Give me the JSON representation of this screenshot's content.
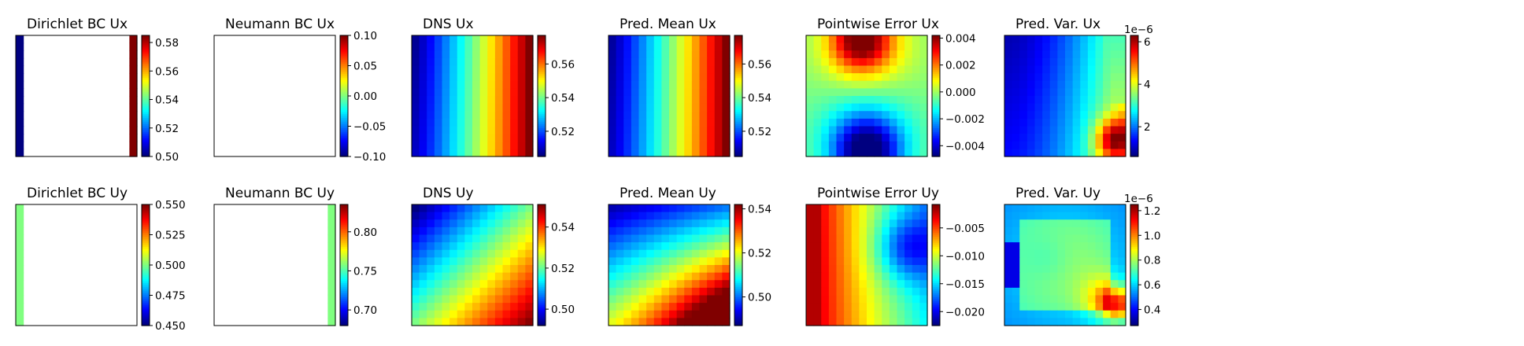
{
  "chart_data": [
    {
      "type": "heatmap",
      "title": "Dirichlet BC Ux",
      "field": "dirichlet_ux",
      "colorbar": {
        "min": 0.5,
        "max": 0.585,
        "ticks": [
          0.5,
          0.52,
          0.54,
          0.56,
          0.58
        ],
        "tick_labels": [
          "0.50",
          "0.52",
          "0.54",
          "0.56",
          "0.58"
        ],
        "offset_label": ""
      }
    },
    {
      "type": "heatmap",
      "title": "Neumann BC Ux",
      "field": "neumann_ux",
      "colorbar": {
        "min": -0.1,
        "max": 0.1,
        "ticks": [
          -0.1,
          -0.05,
          0,
          0.05,
          0.1
        ],
        "tick_labels": [
          "−0.10",
          "−0.05",
          "0.00",
          "0.05",
          "0.10"
        ],
        "offset_label": ""
      }
    },
    {
      "type": "heatmap",
      "title": "DNS Ux",
      "field": "dns_ux",
      "colorbar": {
        "min": 0.505,
        "max": 0.577,
        "ticks": [
          0.52,
          0.54,
          0.56
        ],
        "tick_labels": [
          "0.52",
          "0.54",
          "0.56"
        ],
        "offset_label": ""
      }
    },
    {
      "type": "heatmap",
      "title": "Pred. Mean Ux",
      "field": "pred_ux",
      "colorbar": {
        "min": 0.505,
        "max": 0.577,
        "ticks": [
          0.52,
          0.54,
          0.56
        ],
        "tick_labels": [
          "0.52",
          "0.54",
          "0.56"
        ],
        "offset_label": ""
      }
    },
    {
      "type": "heatmap",
      "title": "Pointwise Error Ux",
      "field": "err_ux",
      "colorbar": {
        "min": -0.0048,
        "max": 0.0042,
        "ticks": [
          -0.004,
          -0.002,
          0,
          0.002,
          0.004
        ],
        "tick_labels": [
          "−0.004",
          "−0.002",
          "0.000",
          "0.002",
          "0.004"
        ],
        "offset_label": ""
      }
    },
    {
      "type": "heatmap",
      "title": "Pred. Var. Ux",
      "field": "var_ux",
      "colorbar": {
        "min": 0.6,
        "max": 6.3,
        "ticks": [
          2,
          4,
          6
        ],
        "tick_labels": [
          "2",
          "4",
          "6"
        ],
        "offset_label": "1e−6"
      }
    },
    {
      "type": "heatmap",
      "title": "Dirichlet BC Uy",
      "field": "dirichlet_uy",
      "colorbar": {
        "min": 0.45,
        "max": 0.55,
        "ticks": [
          0.45,
          0.475,
          0.5,
          0.525,
          0.55
        ],
        "tick_labels": [
          "0.450",
          "0.475",
          "0.500",
          "0.525",
          "0.550"
        ],
        "offset_label": ""
      }
    },
    {
      "type": "heatmap",
      "title": "Neumann BC Uy",
      "field": "neumann_uy",
      "colorbar": {
        "min": 0.68,
        "max": 0.835,
        "ticks": [
          0.7,
          0.75,
          0.8
        ],
        "tick_labels": [
          "0.70",
          "0.75",
          "0.80"
        ],
        "offset_label": ""
      }
    },
    {
      "type": "heatmap",
      "title": "DNS Uy",
      "field": "dns_uy",
      "colorbar": {
        "min": 0.492,
        "max": 0.551,
        "ticks": [
          0.5,
          0.52,
          0.54
        ],
        "tick_labels": [
          "0.50",
          "0.52",
          "0.54"
        ],
        "offset_label": ""
      }
    },
    {
      "type": "heatmap",
      "title": "Pred. Mean Uy",
      "field": "pred_uy",
      "colorbar": {
        "min": 0.487,
        "max": 0.542,
        "ticks": [
          0.5,
          0.52,
          0.54
        ],
        "tick_labels": [
          "0.50",
          "0.52",
          "0.54"
        ],
        "offset_label": ""
      }
    },
    {
      "type": "heatmap",
      "title": "Pointwise Error Uy",
      "field": "err_uy",
      "colorbar": {
        "min": -0.0225,
        "max": -0.0008,
        "ticks": [
          -0.02,
          -0.015,
          -0.01,
          -0.005
        ],
        "tick_labels": [
          "−0.020",
          "−0.015",
          "−0.010",
          "−0.005"
        ],
        "offset_label": ""
      }
    },
    {
      "type": "heatmap",
      "title": "Pred. Var. Uy",
      "field": "var_uy",
      "colorbar": {
        "min": 0.27,
        "max": 1.25,
        "ticks": [
          0.4,
          0.6,
          0.8,
          1.0,
          1.2
        ],
        "tick_labels": [
          "0.4",
          "0.6",
          "0.8",
          "1.0",
          "1.2"
        ],
        "offset_label": "1e−6"
      }
    }
  ],
  "colormap": "jet",
  "grid_size": 16
}
